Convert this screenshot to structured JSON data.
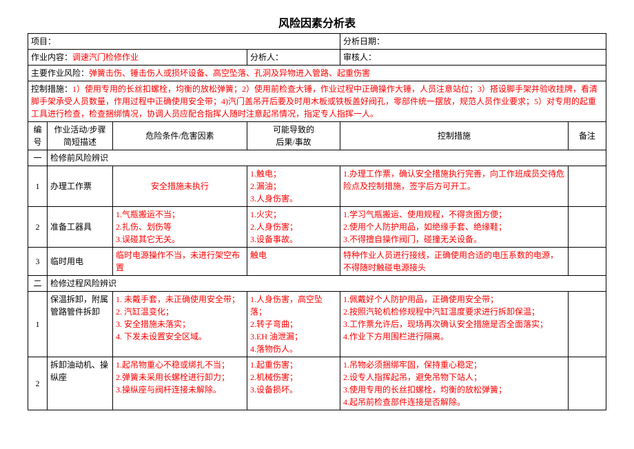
{
  "title": "风险因素分析表",
  "headerRow1": {
    "projectLabel": "项目：",
    "analysisDateLabel": "分析日期："
  },
  "headerRow2": {
    "workContentLabel": "作业内容：",
    "workContentValue": "调速汽门检修作业",
    "analystLabel": "分析人：",
    "reviewerLabel": "审核人："
  },
  "mainRisk": {
    "label": "主要作业风险：",
    "value": "弹簧击伤、锤击伤人或损坏设备、高空坠落、孔洞及异物进入管路、起重伤害"
  },
  "controlMeasure": {
    "label": "控制措施：",
    "value": "1）使用专用的长丝扣螺栓，均衡的放松弹簧；2）使用前检查大锤，作业过程中正确操作大锤，人员注意站位；3）搭设脚手架并验收挂牌，看清脚手架承受人员数量，作用过程中正确使用安全带；4)汽门盖吊开后要及时用木板或铁板盖好阀孔，零部件统一摆放，规范人员作业要求；5）对专用的起重工具进行检查，检查捆绑情况，协调人员应配合指挥人随时注意起吊情况，指定专人指挥一人。"
  },
  "tableHeaders": {
    "num": "编号",
    "activity": "作业活动/步骤简短描述",
    "hazard": "危险条件/危害因素",
    "consequence": "可能导致的\n后果/事故",
    "control": "控制措施",
    "remark": "备注"
  },
  "sections": {
    "one": {
      "num": "一",
      "title": "检修前风险辨识"
    },
    "two": {
      "num": "二",
      "title": "检修过程风险辨识"
    }
  },
  "rows": {
    "s1r1": {
      "num": "1",
      "activity": "办理工作票",
      "hazard": "安全措施未执行",
      "consequence": "1.触电；\n2.漏油；\n3.人身伤害。",
      "control": "1.办理工作票，确认安全措施执行完善，向工作班成员交待危险点及控制措施，签字后方可开工。"
    },
    "s1r2": {
      "num": "2",
      "activity": "准备工器具",
      "hazard": "1.气瓶搬运不当；\n2.扎伤、划伤等\n3.误碰其它无关。",
      "consequence": "1.火灾；\n2.人身伤害；\n3.设备事故。",
      "control": "1.学习气瓶搬运、使用规程，不得贪图方便；\n2.使用个人防护用品，如绝缘手套、绝缘鞋；\n3.不得擅自操作阀门，碰撞无关设备。"
    },
    "s1r3": {
      "num": "3",
      "activity": "临时用电",
      "hazard": "临时电源操作不当，未进行架空布置",
      "consequence": "触电",
      "control": "特种作业人员进行接线，正确使用合适的电压系数的电源，不得随时触碰电源接头"
    },
    "s2r1": {
      "num": "1",
      "activity": "保温拆卸，附属管路管件拆卸",
      "hazard": "1. 未戴手套，未正确使用安全带；\n2. 汽缸温变化；\n3. 安全措施未落实；\n4. 下发未设置安全区域。",
      "consequence": "1.人身伤害，高空坠落；\n2.转子弯曲；\n3.EH 油泄漏；\n4.落物伤人。",
      "control": "1.佩戴好个人防护用品，正确使用安全带；\n2.按照汽轮机检修规程中汽缸温度要求进行拆卸保温；\n3.工作票允许后，现场再次确认安全措施是否全面落实；\n4.作业下方用围栏进行隔离。"
    },
    "s2r2": {
      "num": "2",
      "activity": "拆卸油动机、操纵座",
      "hazard": "1.起吊物重心不稳或绑扎不当；\n2.弹簧未采用长螺栓进行卸力；\n3.操纵座与阀杆连接未解除。",
      "consequence": "1.起重伤害；\n2.机械伤害；\n3.设备损坏。",
      "control": "1.吊物必须捆绑牢固，保持重心稳定；\n2.设专人指挥起吊，避免吊物下站人；\n3.使用专用的长丝扣螺栓，均衡的放松弹簧；\n4.起吊前检查部件连接是否解除。"
    }
  },
  "colors": {
    "text": "#000000",
    "highlight": "#ff0000",
    "border": "#000000",
    "background": "#ffffff"
  }
}
